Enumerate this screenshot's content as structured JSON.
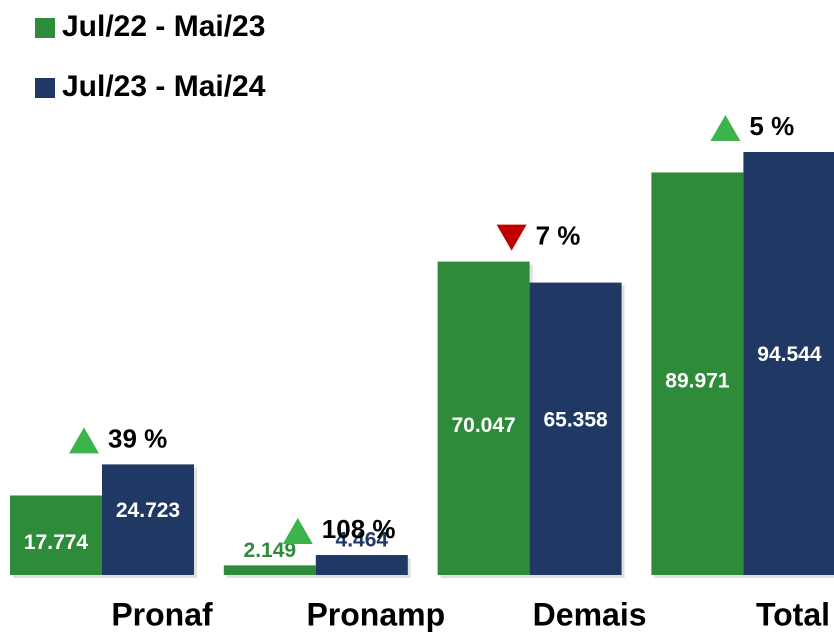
{
  "chart_data": {
    "type": "bar",
    "categories": [
      "Pronaf",
      "Pronamp",
      "Demais",
      "Total"
    ],
    "series": [
      {
        "name": "Jul/22 - Mai/23",
        "color": "#2e8b3a",
        "values": [
          17.774,
          2.149,
          70.047,
          89.971
        ]
      },
      {
        "name": "Jul/23 - Mai/24",
        "color": "#1f3864",
        "values": [
          24.723,
          4.464,
          65.358,
          94.544
        ]
      }
    ],
    "annotations": [
      {
        "text": "39 %",
        "direction": "up",
        "color": "#3cb44b"
      },
      {
        "text": "108 %",
        "direction": "up",
        "color": "#3cb44b"
      },
      {
        "text": "7 %",
        "direction": "down",
        "color": "#c00000"
      },
      {
        "text": "5 %",
        "direction": "up",
        "color": "#3cb44b"
      }
    ],
    "legend": "top-left"
  }
}
